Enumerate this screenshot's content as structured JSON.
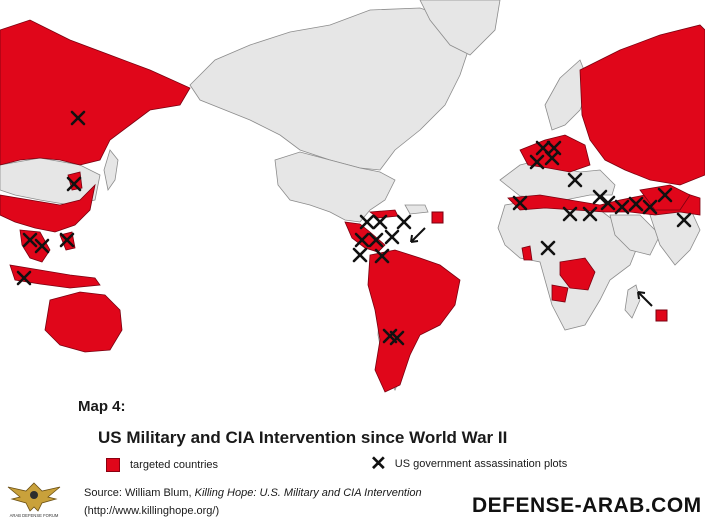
{
  "title": {
    "map_number": "Map 4:",
    "heading": "US Military and CIA Intervention since World War II"
  },
  "legend": {
    "targeted": "targeted countries",
    "plots": "US government assassination plots"
  },
  "source": {
    "prefix": "Source:  William Blum, ",
    "book": "Killing Hope: U.S. Military and CIA Intervention",
    "url": "(http://www.killinghope.org/)"
  },
  "watermark": "DEFENSE-ARAB.COM",
  "colors": {
    "targeted": "#e0061a",
    "other_land": "#e6e6e6",
    "border": "#8c8c8c",
    "marker": "#111111"
  },
  "logo": {
    "icon": "defense-arab-eagle-logo",
    "text": "ARAB DEFENSE FORUM"
  }
}
